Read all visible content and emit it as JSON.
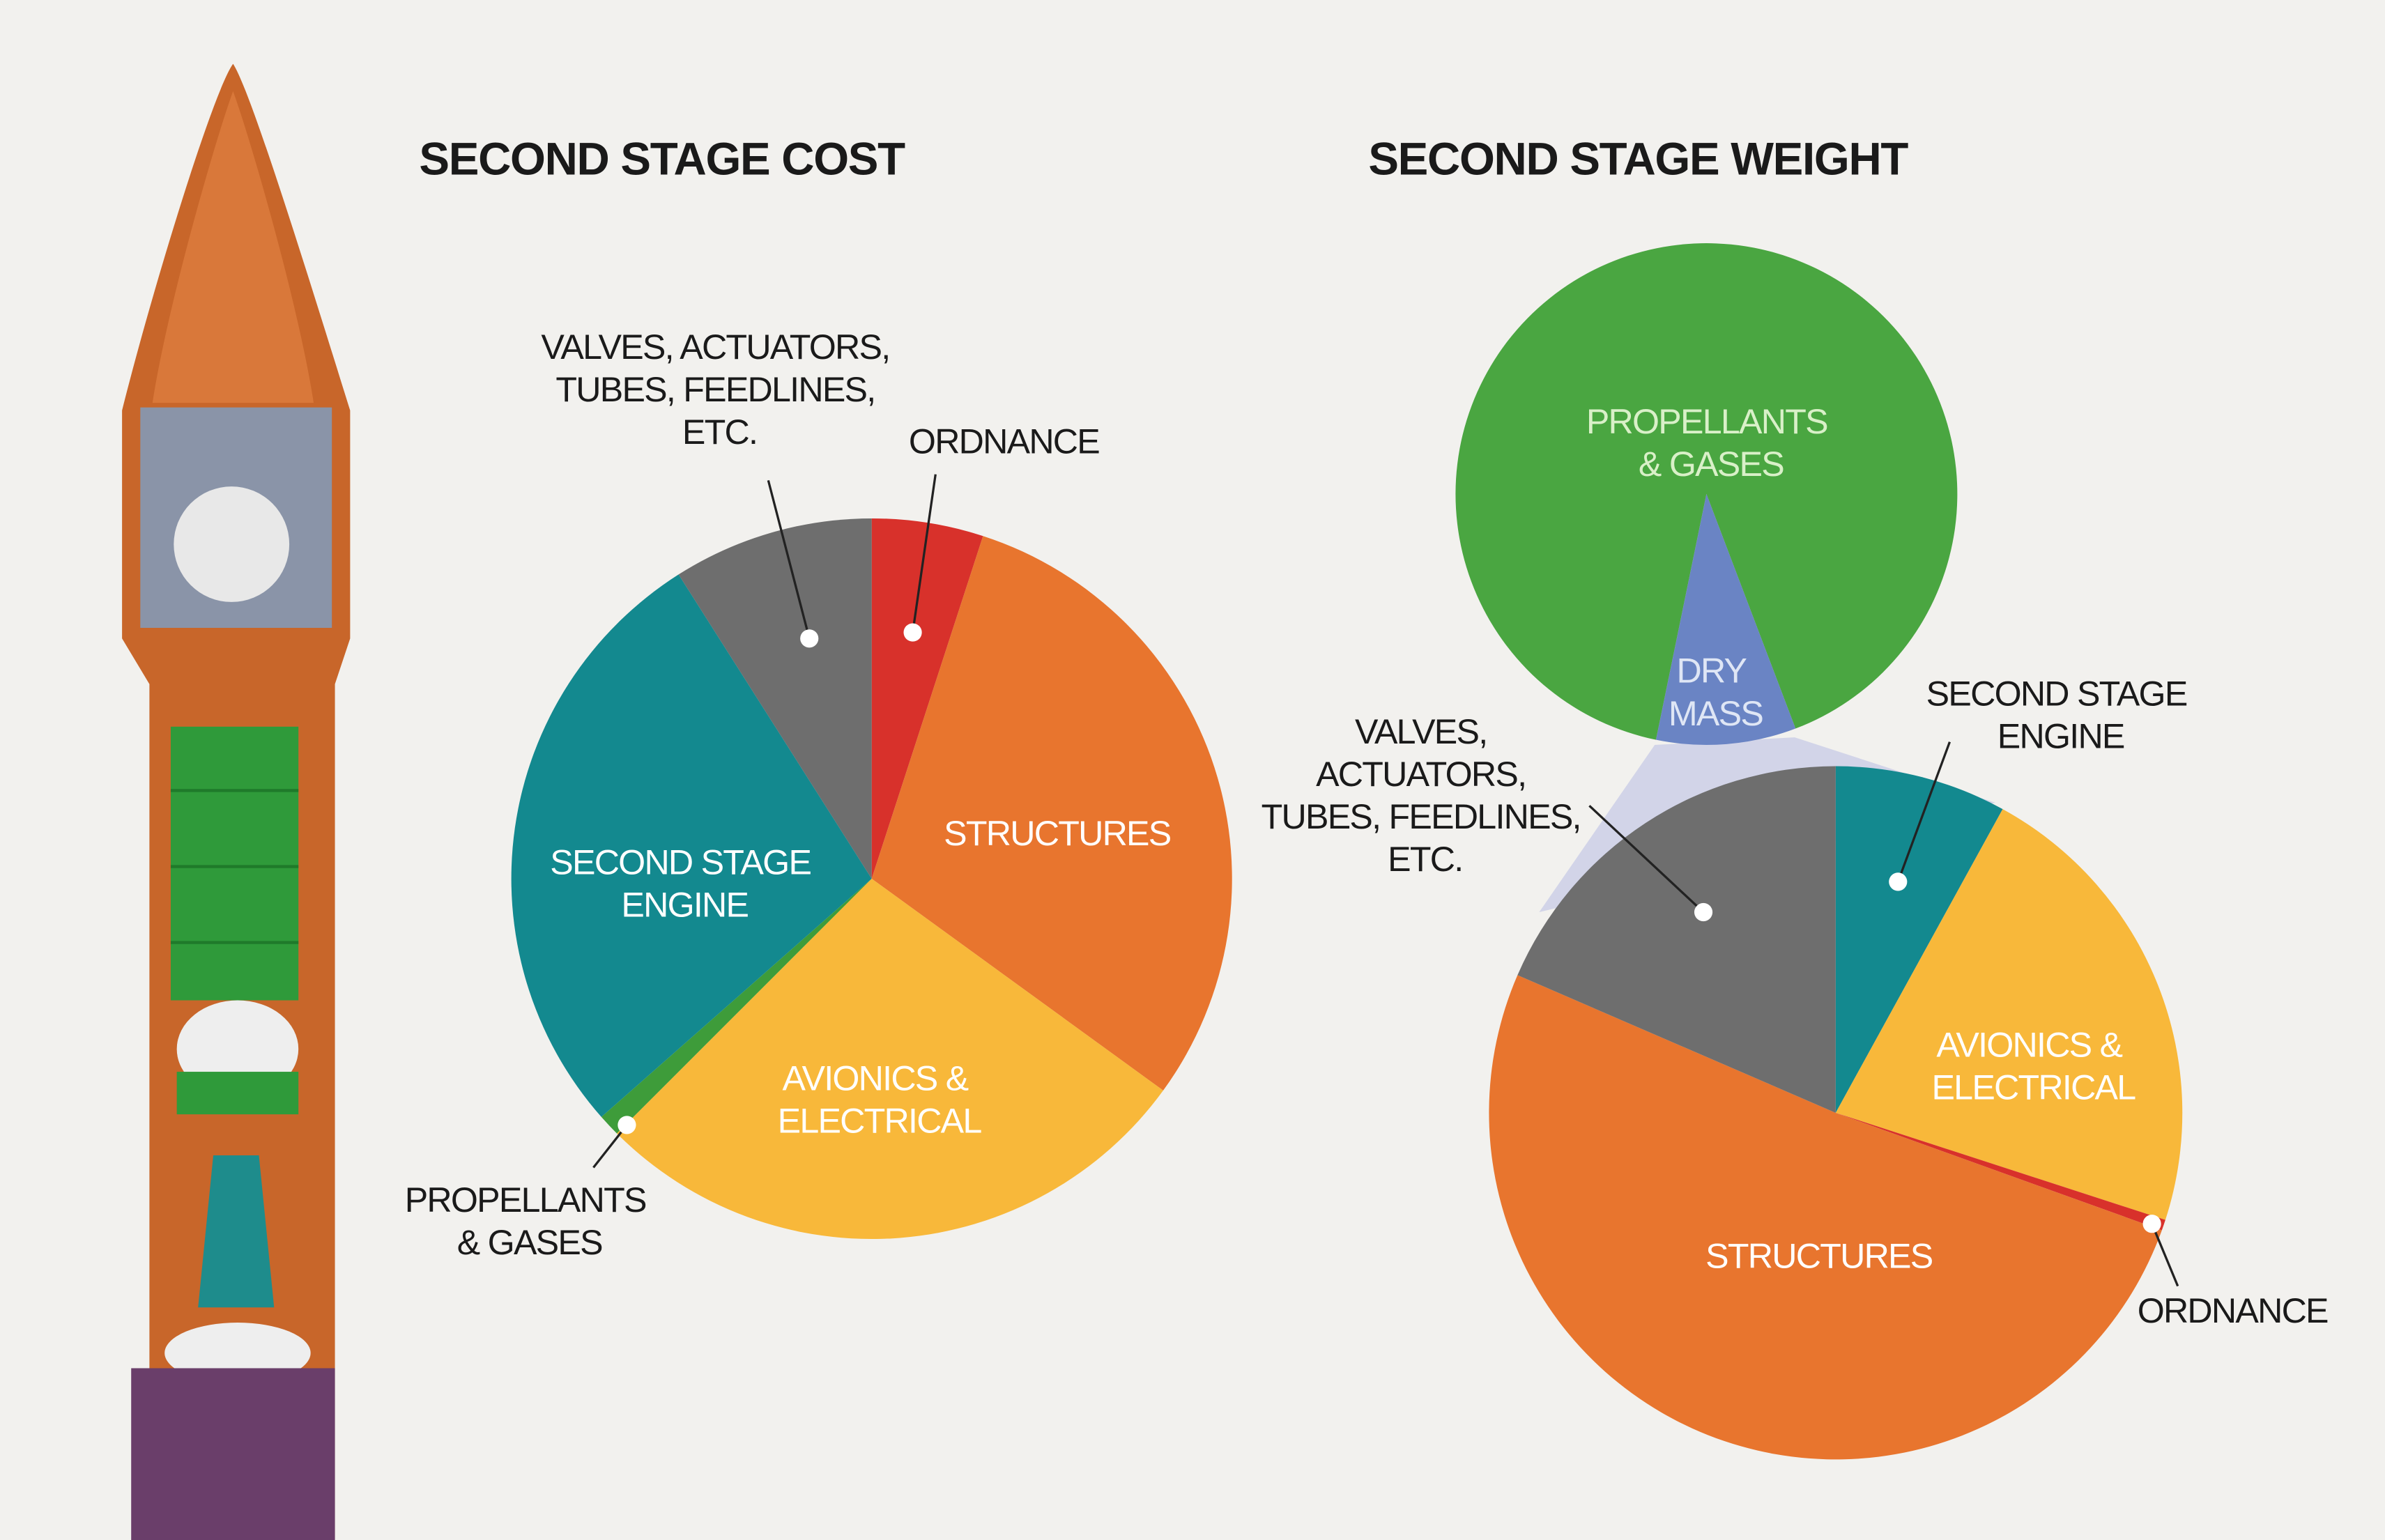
{
  "chart_data": [
    {
      "type": "pie",
      "title": "SECOND STAGE COST",
      "categories": [
        "ORDNANCE",
        "STRUCTURES",
        "AVIONICS &\nELECTRICAL",
        "PROPELLANTS\n& GASES",
        "SECOND STAGE\nENGINE",
        "VALVES, ACTUATORS,\nTUBES, FEEDLINES,\nETC."
      ],
      "values": [
        5,
        30,
        27.5,
        1,
        27.5,
        9
      ],
      "colors": [
        "#d8312b",
        "#e8752e",
        "#f8b83a",
        "#3e9c3a",
        "#13898f",
        "#6e6e6e"
      ]
    },
    {
      "type": "pie",
      "title": "SECOND STAGE WEIGHT",
      "categories": [
        "PROPELLANTS\n& GASES",
        "DRY\nMASS"
      ],
      "values": [
        91,
        9
      ],
      "colors": [
        "#4aa641",
        "#6a84c4"
      ]
    },
    {
      "type": "pie",
      "categories": [
        "SECOND STAGE\nENGINE",
        "AVIONICS &\nELECTRICAL",
        "ORDNANCE",
        "STRUCTURES",
        "VALVES,\nACTUATORS,\nTUBES, FEEDLINES,\nETC."
      ],
      "values": [
        8,
        22,
        0.5,
        51,
        18.5
      ],
      "colors": [
        "#13898f",
        "#f8b83a",
        "#d8312b",
        "#e8752e",
        "#6e6e6e"
      ]
    }
  ]
}
